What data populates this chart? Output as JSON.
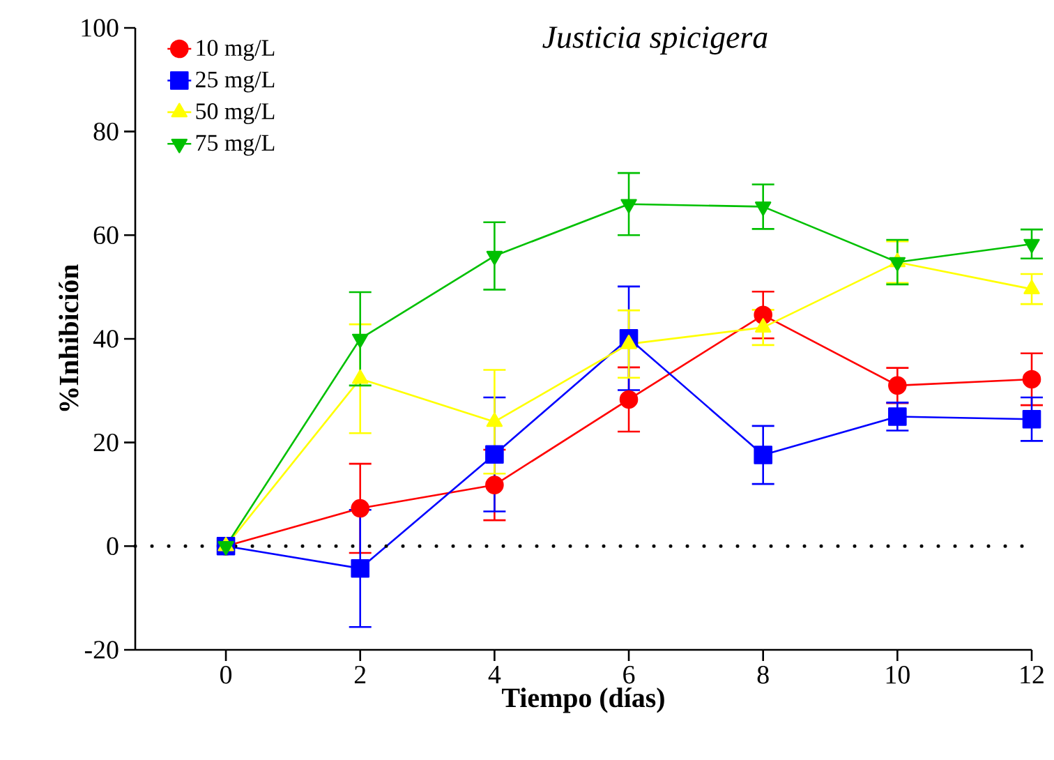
{
  "chart_data": {
    "type": "line",
    "title": "Justicia spicigera",
    "xlabel": "Tiempo (días)",
    "ylabel": "%Inhibición",
    "x": [
      0,
      2,
      4,
      6,
      8,
      10,
      12
    ],
    "series": [
      {
        "name": "10 mg/L",
        "color": "#ff0000",
        "marker": "circle",
        "values": [
          0,
          7.3,
          11.8,
          28.3,
          44.6,
          31,
          32.2
        ],
        "errors": [
          null,
          8.6,
          6.8,
          6.2,
          4.5,
          3.4,
          5
        ]
      },
      {
        "name": "25 mg/L",
        "color": "#0000ff",
        "marker": "square",
        "values": [
          0,
          -4.3,
          17.7,
          40.1,
          17.6,
          25,
          24.5
        ],
        "errors": [
          null,
          11.3,
          11,
          10,
          5.6,
          2.7,
          4.2
        ]
      },
      {
        "name": "50 mg/L",
        "color": "#ffff00",
        "marker": "triangle",
        "values": [
          0,
          32.3,
          24,
          39,
          42.2,
          54.8,
          49.6
        ],
        "errors": [
          null,
          10.5,
          10,
          6.5,
          3.4,
          4,
          2.9
        ]
      },
      {
        "name": "75 mg/L",
        "color": "#00c000",
        "marker": "triangle-down",
        "values": [
          0,
          40,
          56,
          66,
          65.5,
          54.8,
          58.3
        ],
        "errors": [
          null,
          9,
          6.5,
          6,
          4.3,
          4.3,
          2.8
        ]
      }
    ],
    "xlim": [
      -1.35,
      12
    ],
    "ylim": [
      -20,
      100
    ],
    "xticks": [
      0,
      2,
      4,
      6,
      8,
      10,
      12
    ],
    "yticks": [
      -20,
      0,
      20,
      40,
      60,
      80,
      100
    ],
    "ref_lines": [
      {
        "axis": "y",
        "value": 0,
        "color": "#000000",
        "line_style": "dotted"
      }
    ],
    "grid": false,
    "legend": "top left",
    "line_style": "solid"
  }
}
